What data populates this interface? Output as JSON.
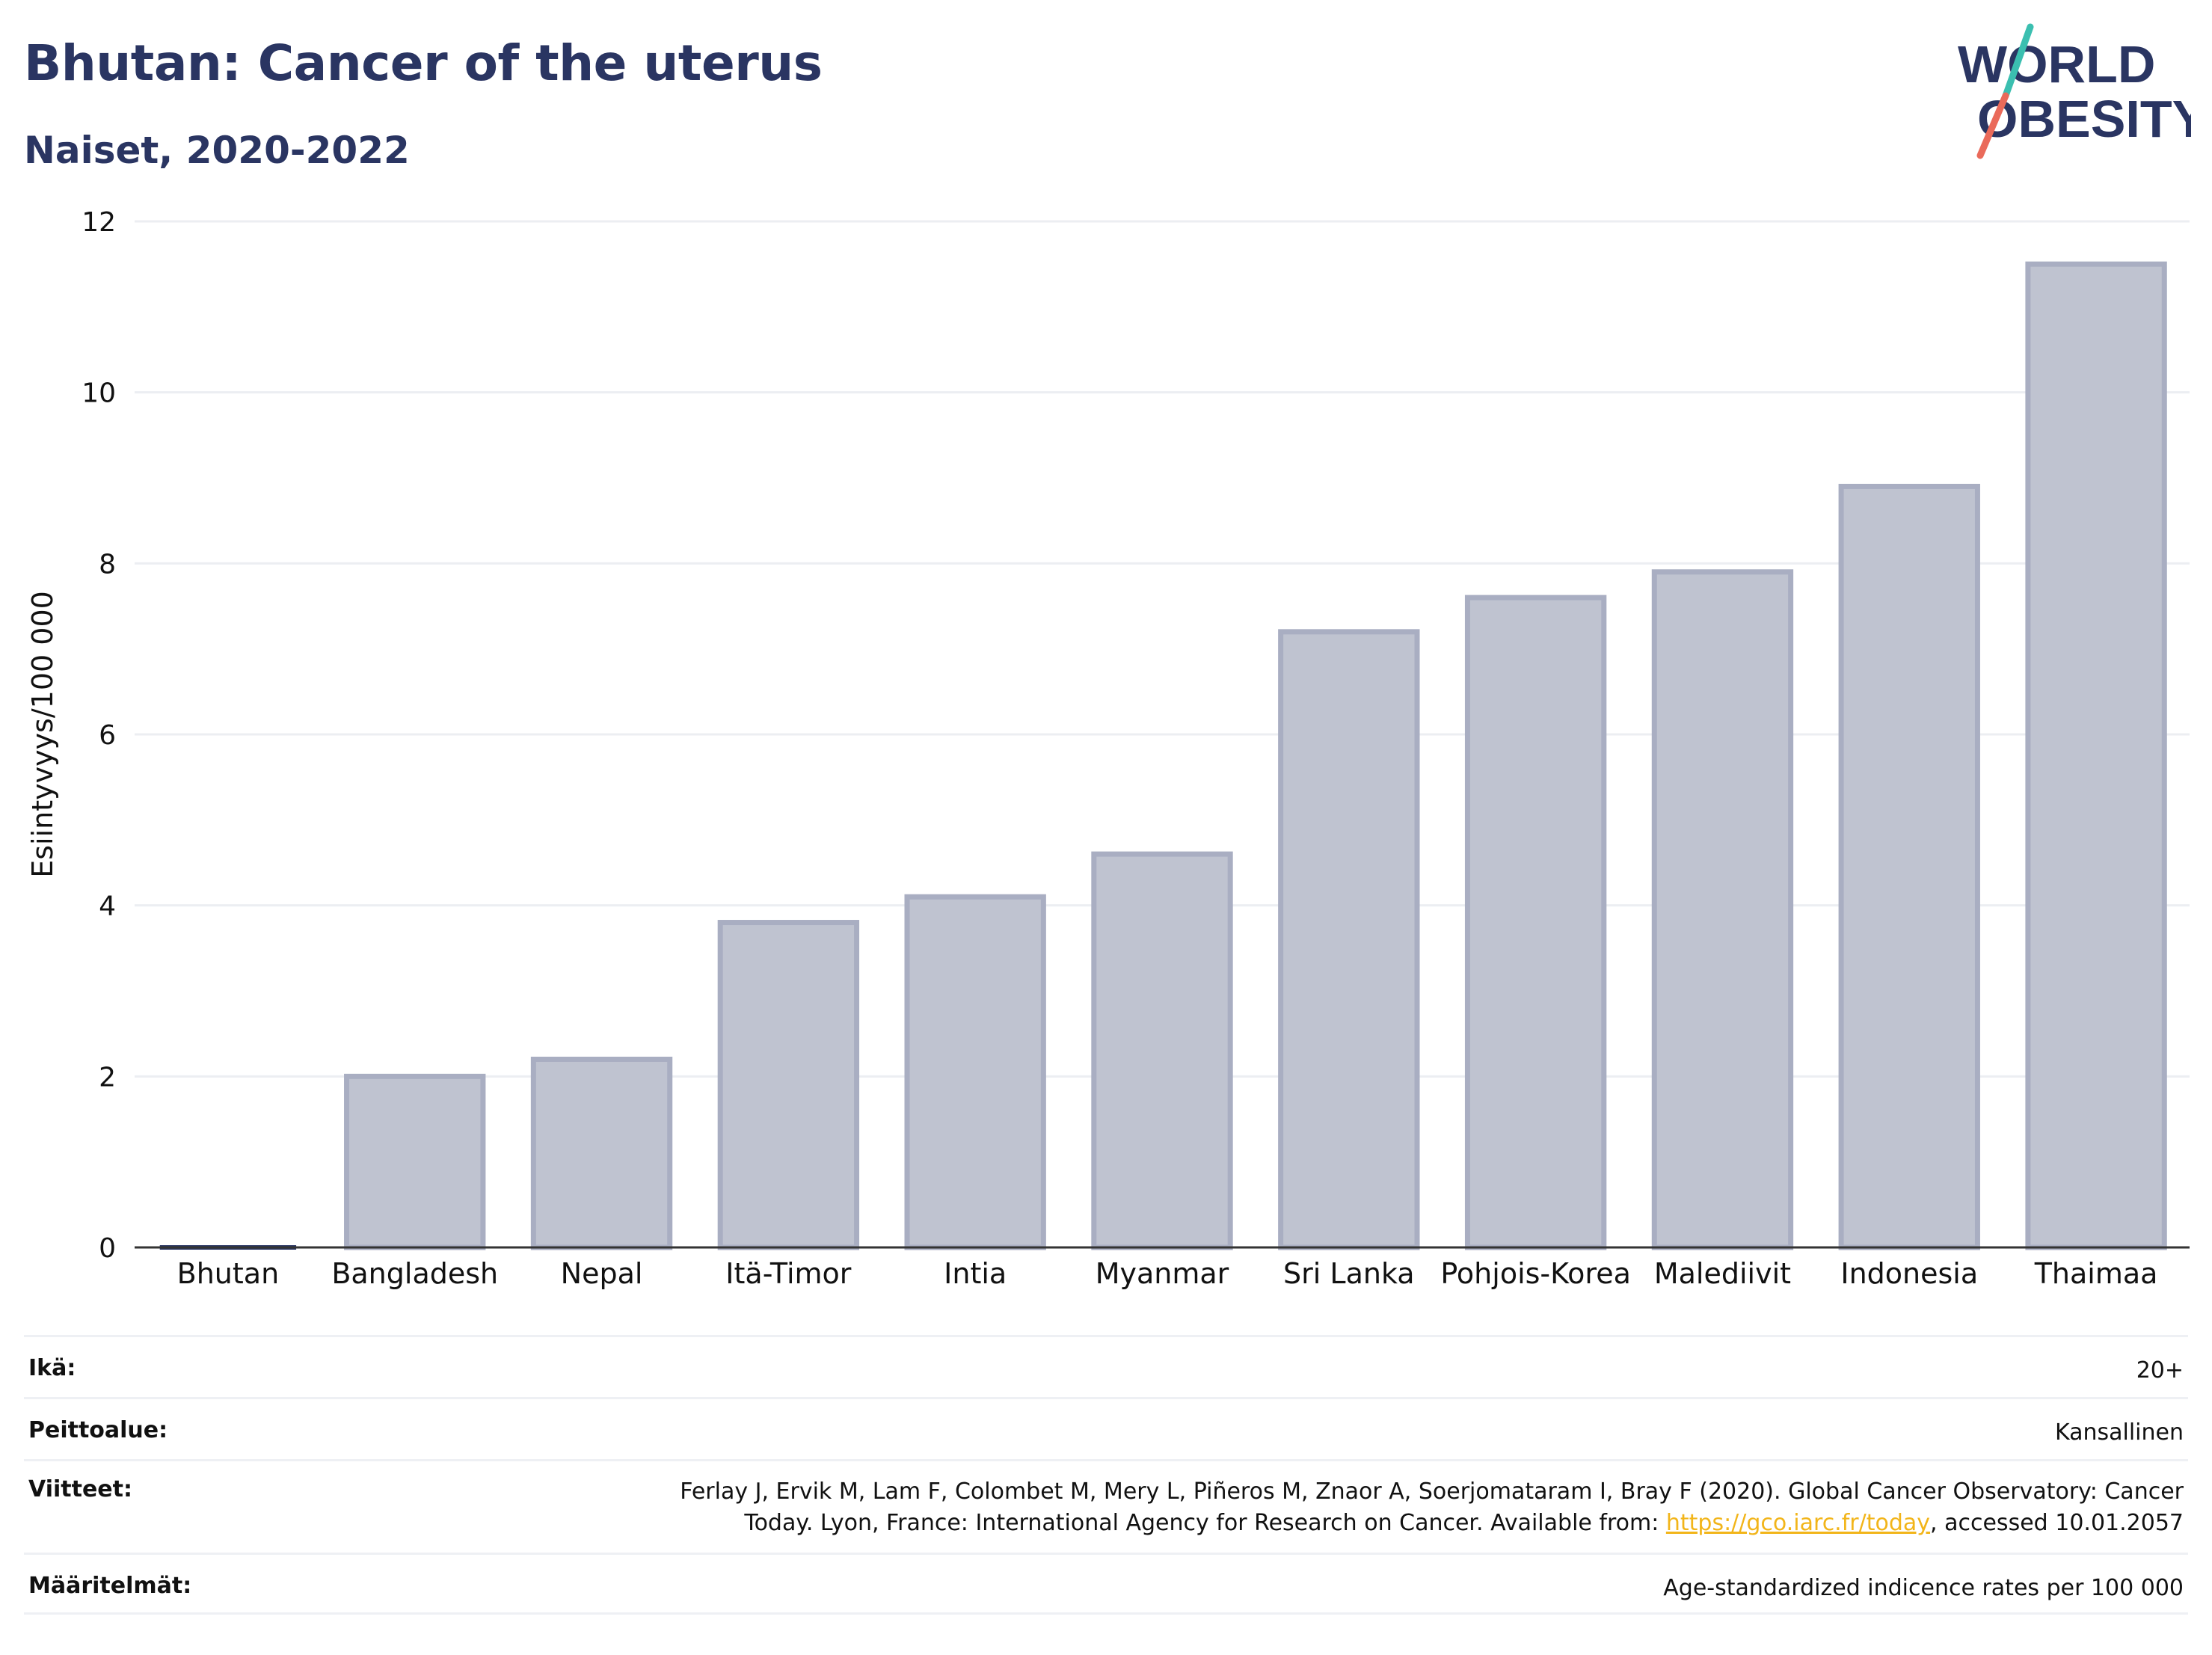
{
  "header": {
    "title": "Bhutan: Cancer of the uterus",
    "subtitle": "Naiset, 2020-2022"
  },
  "logo": {
    "line1": "WORLD",
    "line2": "OBESITY"
  },
  "colors": {
    "bar_fill": "#bfc3d0",
    "bar_stroke": "#a9aec2",
    "highlight": "#2a3562",
    "title": "#2a3562",
    "grid": "#eceef2",
    "link": "#f2b51a"
  },
  "chart_data": {
    "type": "bar",
    "title": "Bhutan: Cancer of the uterus",
    "subtitle": "Naiset, 2020-2022",
    "xlabel": "",
    "ylabel": "Esiintyvyys/100 000",
    "ylim": [
      0,
      12
    ],
    "yticks": [
      0,
      2,
      4,
      6,
      8,
      10,
      12
    ],
    "grid": true,
    "highlight_category": "Bhutan",
    "categories": [
      "Bhutan",
      "Bangladesh",
      "Nepal",
      "Itä-Timor",
      "Intia",
      "Myanmar",
      "Sri Lanka",
      "Pohjois-Korea",
      "Malediivit",
      "Indonesia",
      "Thaimaa"
    ],
    "values": [
      0.0,
      2.0,
      2.2,
      3.8,
      4.1,
      4.6,
      7.2,
      7.6,
      7.9,
      8.9,
      11.5
    ]
  },
  "meta": {
    "age": {
      "label": "Ikä:",
      "value": "20+"
    },
    "coverage": {
      "label": "Peittoalue:",
      "value": "Kansallinen"
    },
    "references": {
      "label": "Viitteet:",
      "line1": "Ferlay J, Ervik M, Lam F, Colombet M, Mery L, Piñeros M, Znaor A, Soerjomataram I, Bray F (2020). Global Cancer Observatory: Cancer",
      "line2_pre": "Today. Lyon, France: International Agency for Research on Cancer. Available from: ",
      "link": "https://gco.iarc.fr/today",
      "line2_post": ", accessed 10.01.2057"
    },
    "definitions": {
      "label": "Määritelmät:",
      "value": "Age-standardized indicence rates per 100 000"
    }
  }
}
